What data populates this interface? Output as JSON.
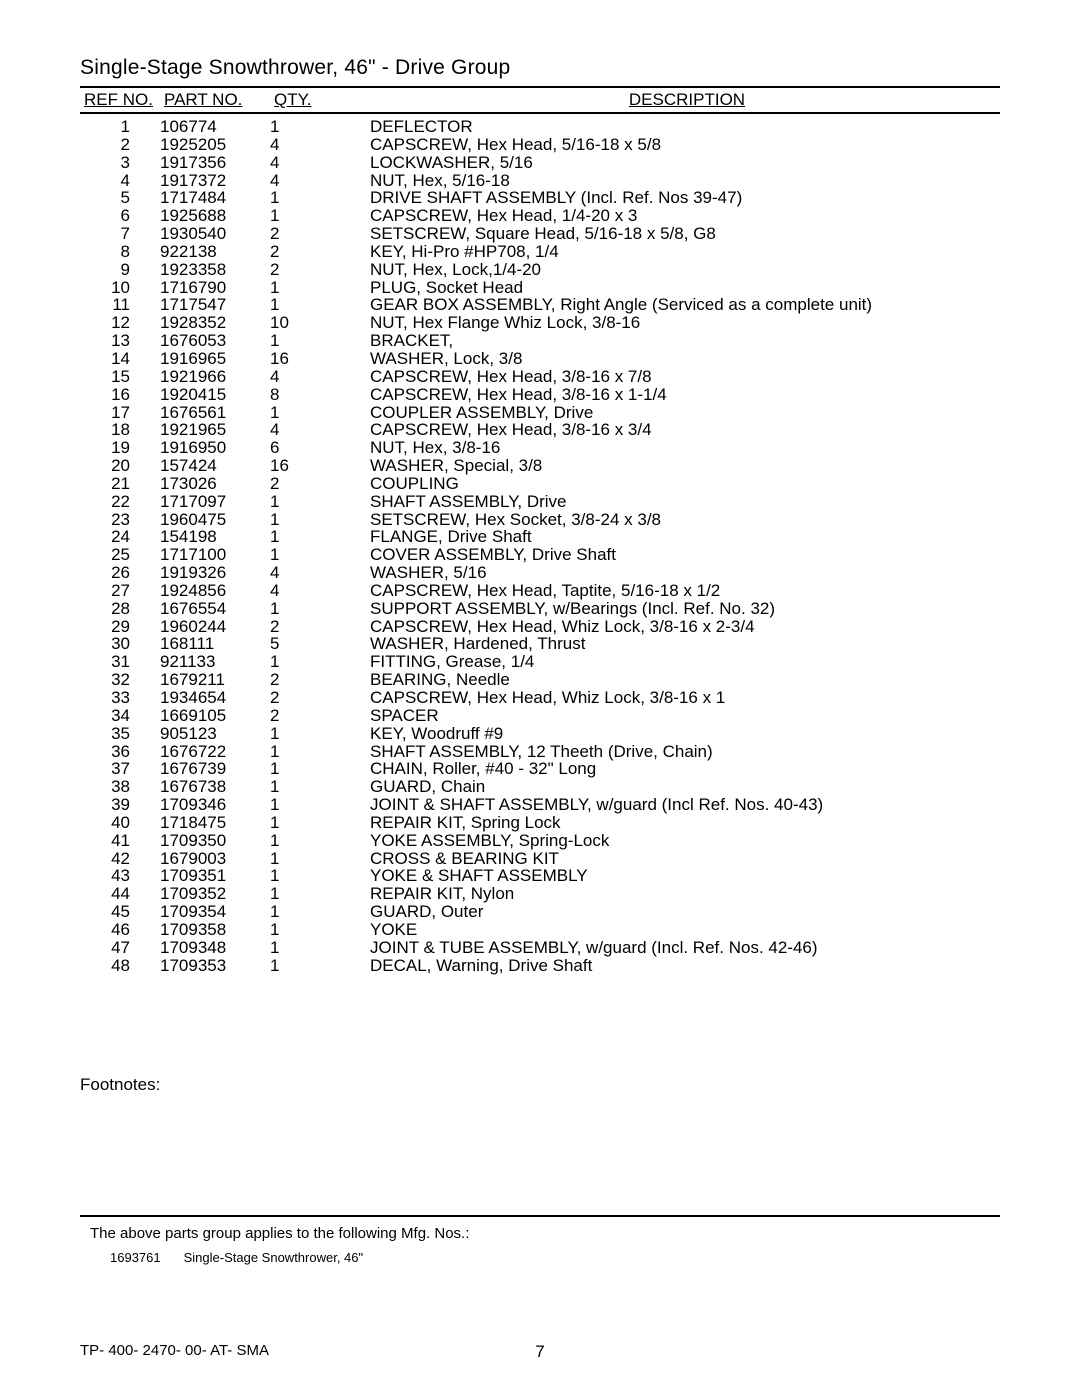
{
  "title": "Single-Stage Snowthrower, 46\" - Drive Group",
  "headers": {
    "ref": "REF NO.",
    "part": "PART NO.",
    "qty": "QTY.",
    "desc": "DESCRIPTION"
  },
  "rows": [
    {
      "ref": "1",
      "part": "106774",
      "qty": "1",
      "desc": "DEFLECTOR"
    },
    {
      "ref": "2",
      "part": "1925205",
      "qty": "4",
      "desc": "CAPSCREW, Hex Head, 5/16-18 x 5/8"
    },
    {
      "ref": "3",
      "part": "1917356",
      "qty": "4",
      "desc": "LOCKWASHER, 5/16"
    },
    {
      "ref": "4",
      "part": "1917372",
      "qty": "4",
      "desc": "NUT, Hex, 5/16-18"
    },
    {
      "ref": "5",
      "part": "1717484",
      "qty": "1",
      "desc": "DRIVE SHAFT ASSEMBLY (Incl. Ref. Nos 39-47)"
    },
    {
      "ref": "6",
      "part": "1925688",
      "qty": "1",
      "desc": "CAPSCREW, Hex Head, 1/4-20 x 3"
    },
    {
      "ref": "7",
      "part": "1930540",
      "qty": "2",
      "desc": "SETSCREW, Square Head, 5/16-18 x 5/8, G8"
    },
    {
      "ref": "8",
      "part": "922138",
      "qty": "2",
      "desc": "KEY, Hi-Pro #HP708, 1/4"
    },
    {
      "ref": "9",
      "part": "1923358",
      "qty": "2",
      "desc": "NUT, Hex, Lock,1/4-20"
    },
    {
      "ref": "10",
      "part": "1716790",
      "qty": "1",
      "desc": "PLUG, Socket Head"
    },
    {
      "ref": "11",
      "part": "1717547",
      "qty": "1",
      "desc": "GEAR BOX ASSEMBLY, Right Angle (Serviced as a complete unit)"
    },
    {
      "ref": "12",
      "part": "1928352",
      "qty": "10",
      "desc": "NUT, Hex Flange Whiz Lock, 3/8-16"
    },
    {
      "ref": "13",
      "part": "1676053",
      "qty": "1",
      "desc": "BRACKET,"
    },
    {
      "ref": "14",
      "part": "1916965",
      "qty": "16",
      "desc": "WASHER, Lock, 3/8"
    },
    {
      "ref": "15",
      "part": "1921966",
      "qty": "4",
      "desc": "CAPSCREW, Hex Head, 3/8-16 x 7/8"
    },
    {
      "ref": "16",
      "part": "1920415",
      "qty": "8",
      "desc": "CAPSCREW, Hex Head, 3/8-16 x 1-1/4"
    },
    {
      "ref": "17",
      "part": "1676561",
      "qty": "1",
      "desc": "COUPLER ASSEMBLY, Drive"
    },
    {
      "ref": "18",
      "part": "1921965",
      "qty": "4",
      "desc": "CAPSCREW, Hex Head, 3/8-16 x 3/4"
    },
    {
      "ref": "19",
      "part": "1916950",
      "qty": "6",
      "desc": "NUT, Hex, 3/8-16"
    },
    {
      "ref": "20",
      "part": "157424",
      "qty": "16",
      "desc": "WASHER, Special, 3/8"
    },
    {
      "ref": "21",
      "part": "173026",
      "qty": "2",
      "desc": "COUPLING"
    },
    {
      "ref": "22",
      "part": "1717097",
      "qty": "1",
      "desc": "SHAFT ASSEMBLY, Drive"
    },
    {
      "ref": "23",
      "part": "1960475",
      "qty": "1",
      "desc": "SETSCREW, Hex Socket, 3/8-24 x 3/8"
    },
    {
      "ref": "24",
      "part": "154198",
      "qty": "1",
      "desc": "FLANGE, Drive Shaft"
    },
    {
      "ref": "25",
      "part": "1717100",
      "qty": "1",
      "desc": "COVER ASSEMBLY, Drive Shaft"
    },
    {
      "ref": "26",
      "part": "1919326",
      "qty": "4",
      "desc": "WASHER, 5/16"
    },
    {
      "ref": "27",
      "part": "1924856",
      "qty": "4",
      "desc": "CAPSCREW, Hex Head, Taptite, 5/16-18 x 1/2"
    },
    {
      "ref": "28",
      "part": "1676554",
      "qty": "1",
      "desc": "SUPPORT ASSEMBLY, w/Bearings (Incl. Ref. No. 32)"
    },
    {
      "ref": "29",
      "part": "1960244",
      "qty": "2",
      "desc": "CAPSCREW, Hex Head, Whiz Lock, 3/8-16 x 2-3/4"
    },
    {
      "ref": "30",
      "part": "168111",
      "qty": "5",
      "desc": "WASHER, Hardened, Thrust"
    },
    {
      "ref": "31",
      "part": "921133",
      "qty": "1",
      "desc": "FITTING, Grease, 1/4"
    },
    {
      "ref": "32",
      "part": "1679211",
      "qty": "2",
      "desc": "BEARING, Needle"
    },
    {
      "ref": "33",
      "part": "1934654",
      "qty": "2",
      "desc": "CAPSCREW, Hex Head, Whiz Lock, 3/8-16 x 1"
    },
    {
      "ref": "34",
      "part": "1669105",
      "qty": "2",
      "desc": "SPACER"
    },
    {
      "ref": "35",
      "part": "905123",
      "qty": "1",
      "desc": "KEY, Woodruff #9"
    },
    {
      "ref": "36",
      "part": "1676722",
      "qty": "1",
      "desc": "SHAFT ASSEMBLY, 12 Theeth (Drive, Chain)"
    },
    {
      "ref": "37",
      "part": "1676739",
      "qty": "1",
      "desc": "CHAIN, Roller, #40 - 32\" Long"
    },
    {
      "ref": "38",
      "part": "1676738",
      "qty": "1",
      "desc": "GUARD, Chain"
    },
    {
      "ref": "39",
      "part": "1709346",
      "qty": "1",
      "desc": "JOINT & SHAFT ASSEMBLY, w/guard (Incl Ref. Nos. 40-43)"
    },
    {
      "ref": "40",
      "part": "1718475",
      "qty": "1",
      "desc": "REPAIR KIT, Spring Lock"
    },
    {
      "ref": "41",
      "part": "1709350",
      "qty": "1",
      "desc": "YOKE ASSEMBLY, Spring-Lock"
    },
    {
      "ref": "42",
      "part": "1679003",
      "qty": "1",
      "desc": "CROSS & BEARING KIT"
    },
    {
      "ref": "43",
      "part": "1709351",
      "qty": "1",
      "desc": "YOKE & SHAFT ASSEMBLY"
    },
    {
      "ref": "44",
      "part": "1709352",
      "qty": "1",
      "desc": "REPAIR KIT, Nylon"
    },
    {
      "ref": "45",
      "part": "1709354",
      "qty": "1",
      "desc": "GUARD, Outer"
    },
    {
      "ref": "46",
      "part": "1709358",
      "qty": "1",
      "desc": "YOKE"
    },
    {
      "ref": "47",
      "part": "1709348",
      "qty": "1",
      "desc": "JOINT & TUBE ASSEMBLY, w/guard (Incl. Ref. Nos. 42-46)"
    },
    {
      "ref": "48",
      "part": "1709353",
      "qty": "1",
      "desc": "DECAL, Warning, Drive Shaft"
    }
  ],
  "footnotes_label": "Footnotes:",
  "applies_text": "The above parts group applies to the following Mfg. Nos.:",
  "mfg": {
    "no": "1693761",
    "desc": "Single-Stage Snowthrower, 46\""
  },
  "footer_code": "TP- 400- 2470- 00- AT- SMA",
  "page_number": "7"
}
